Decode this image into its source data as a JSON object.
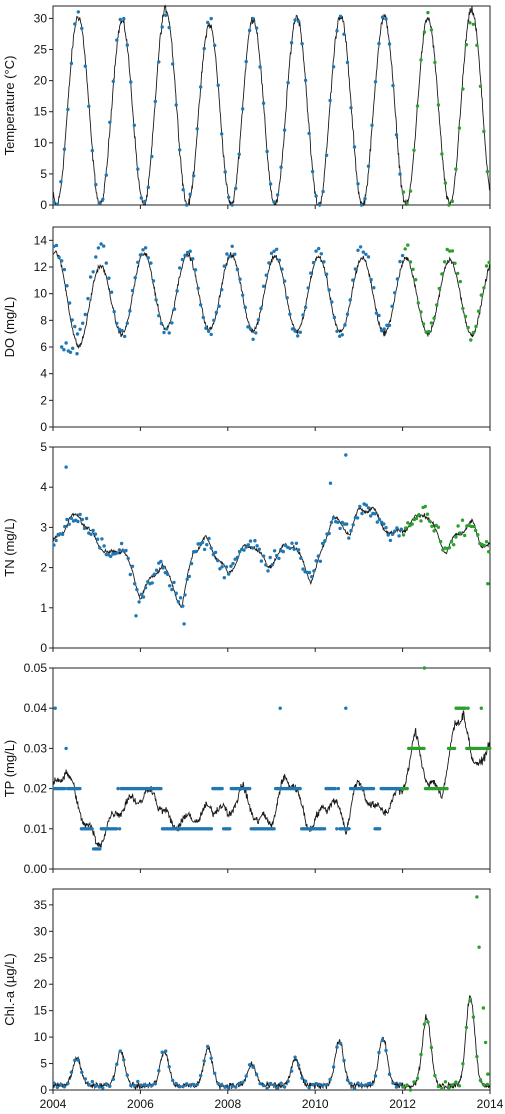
{
  "chart_data": {
    "type": "line",
    "x_axis": {
      "min": 2004,
      "max": 2014,
      "ticks": [
        "2004",
        "2006",
        "2008",
        "2010",
        "2012",
        "2014"
      ],
      "tick_values": [
        2004,
        2006,
        2008,
        2010,
        2012,
        2014
      ]
    },
    "colors": {
      "model_line": "#1a1a1a",
      "obs_blue": "#1f77b4",
      "obs_green": "#2ca02c"
    },
    "panels": [
      {
        "key": "temp",
        "ylabel": "Temperature (°C)",
        "ylim": [
          0,
          32
        ],
        "yticks": [
          0,
          5,
          10,
          15,
          20,
          25,
          30
        ],
        "line": {
          "model": "seasonal",
          "mean": 15,
          "amp": 15,
          "peak": 0.58,
          "sharp": 1.0,
          "noise": 1.0,
          "peaks": [
            30.3,
            29.5,
            31.5,
            29,
            30,
            30.3,
            30.5,
            30.2,
            30,
            31.3
          ]
        },
        "obs": {
          "model": "seasonal",
          "mean": 15,
          "amp": 15,
          "peak": 0.58,
          "scatter": 1.5,
          "step": 0.08
        },
        "green_after": 2012
      },
      {
        "key": "do",
        "ylabel": "DO (mg/L)",
        "ylim": [
          0,
          15
        ],
        "yticks": [
          0,
          2,
          4,
          6,
          8,
          10,
          12,
          14
        ],
        "line": {
          "model": "seasonal",
          "mean": 10,
          "amp": 2.8,
          "peak": 0.08,
          "noise": 0.3,
          "trend": [
            [
              2004,
              0.5
            ],
            [
              2004.6,
              -1.2
            ],
            [
              2006,
              0.2
            ],
            [
              2014,
              -0.3
            ]
          ]
        },
        "obs": {
          "model": "seasonal",
          "mean": 10.2,
          "amp": 3.2,
          "peak": 0.08,
          "scatter": 0.7,
          "step": 0.06
        },
        "extra_points": [
          [
            2004.2,
            6
          ],
          [
            2004.25,
            5.8
          ],
          [
            2004.3,
            6.3
          ],
          [
            2004.35,
            5.7
          ],
          [
            2004.4,
            5.6
          ],
          [
            2004.45,
            5.9
          ],
          [
            2004.55,
            5.5
          ]
        ],
        "green_after": 2012
      },
      {
        "key": "tn",
        "ylabel": "TN (mg/L)",
        "ylim": [
          0,
          5
        ],
        "yticks": [
          0,
          1,
          2,
          3,
          4,
          5
        ],
        "line": {
          "model": "piecewise",
          "noise": 0.06,
          "wiggle": 0.18,
          "points": [
            [
              2004,
              2.6
            ],
            [
              2004.4,
              3.2
            ],
            [
              2004.6,
              3.3
            ],
            [
              2004.9,
              2.8
            ],
            [
              2005.3,
              2.3
            ],
            [
              2005.6,
              2.5
            ],
            [
              2005.8,
              1.9
            ],
            [
              2006.0,
              1.3
            ],
            [
              2006.3,
              1.8
            ],
            [
              2006.5,
              2.1
            ],
            [
              2006.8,
              1.4
            ],
            [
              2006.95,
              1.0
            ],
            [
              2007.2,
              2.4
            ],
            [
              2007.5,
              2.7
            ],
            [
              2007.8,
              2.2
            ],
            [
              2008.0,
              1.8
            ],
            [
              2008.3,
              2.4
            ],
            [
              2008.6,
              2.6
            ],
            [
              2008.9,
              2.0
            ],
            [
              2009.3,
              2.5
            ],
            [
              2009.5,
              2.6
            ],
            [
              2009.9,
              1.7
            ],
            [
              2010.1,
              2.2
            ],
            [
              2010.4,
              3.3
            ],
            [
              2010.6,
              3.0
            ],
            [
              2010.8,
              2.9
            ],
            [
              2011.0,
              3.4
            ],
            [
              2011.3,
              3.5
            ],
            [
              2011.5,
              3.1
            ],
            [
              2011.8,
              2.8
            ],
            [
              2012.3,
              3.2
            ],
            [
              2012.5,
              3.4
            ],
            [
              2012.8,
              2.8
            ],
            [
              2013.0,
              2.4
            ],
            [
              2013.3,
              2.9
            ],
            [
              2013.6,
              3.1
            ],
            [
              2013.8,
              2.6
            ],
            [
              2014,
              2.5
            ]
          ]
        },
        "obs": {
          "model": "line",
          "scatter": 0.3,
          "step": 0.05
        },
        "extra_points": [
          [
            2004.3,
            4.5
          ],
          [
            2010.7,
            4.8
          ],
          [
            2010.35,
            4.1
          ],
          [
            2005.9,
            0.8
          ],
          [
            2007.0,
            0.6
          ],
          [
            2013.95,
            1.6
          ]
        ],
        "green_after": 2012
      },
      {
        "key": "tp",
        "ylabel": "TP (mg/L)",
        "ylim": [
          0,
          0.05
        ],
        "yticks": [
          0.0,
          0.01,
          0.02,
          0.03,
          0.04,
          0.05
        ],
        "ytick_labels": [
          "0.00",
          "0.01",
          "0.02",
          "0.03",
          "0.04",
          "0.05"
        ],
        "line": {
          "model": "piecewise",
          "noise": 0.0015,
          "wiggle": 0.003,
          "points": [
            [
              2004,
              0.02
            ],
            [
              2004.3,
              0.025
            ],
            [
              2004.6,
              0.015
            ],
            [
              2005.0,
              0.006
            ],
            [
              2005.5,
              0.015
            ],
            [
              2006.0,
              0.018
            ],
            [
              2006.3,
              0.019
            ],
            [
              2006.7,
              0.011
            ],
            [
              2007.3,
              0.013
            ],
            [
              2007.8,
              0.016
            ],
            [
              2008.0,
              0.013
            ],
            [
              2008.3,
              0.02
            ],
            [
              2008.7,
              0.012
            ],
            [
              2009.0,
              0.012
            ],
            [
              2009.3,
              0.022
            ],
            [
              2009.5,
              0.022
            ],
            [
              2009.8,
              0.011
            ],
            [
              2010.1,
              0.013
            ],
            [
              2010.4,
              0.018
            ],
            [
              2010.7,
              0.01
            ],
            [
              2010.9,
              0.02
            ],
            [
              2011.1,
              0.02
            ],
            [
              2011.4,
              0.014
            ],
            [
              2011.7,
              0.016
            ],
            [
              2012.0,
              0.02
            ],
            [
              2012.3,
              0.033
            ],
            [
              2012.6,
              0.021
            ],
            [
              2012.9,
              0.019
            ],
            [
              2013.2,
              0.035
            ],
            [
              2013.4,
              0.04
            ],
            [
              2013.6,
              0.025
            ],
            [
              2013.8,
              0.028
            ],
            [
              2014,
              0.03
            ]
          ]
        },
        "obs": {
          "model": "quantized",
          "levels": [
            0.005,
            0.01,
            0.02,
            0.03,
            0.04
          ],
          "step": 0.035
        },
        "extra_points": [
          [
            2004.05,
            0.04
          ],
          [
            2012.5,
            0.05
          ],
          [
            2009.2,
            0.04
          ],
          [
            2010.7,
            0.04
          ],
          [
            2013.5,
            0.04
          ],
          [
            2013.8,
            0.04
          ]
        ],
        "green_after": 2012
      },
      {
        "key": "chla",
        "ylabel": "Chl.-a (µg/L)",
        "ylim": [
          0,
          38
        ],
        "yticks": [
          0,
          5,
          10,
          15,
          20,
          25,
          30,
          35
        ],
        "line": {
          "model": "bloom",
          "noise": 0.9,
          "base": 0.8,
          "peaks": [
            5.3,
            6.6,
            6.6,
            7.0,
            4.0,
            5.0,
            8.5,
            9.0,
            13.0,
            17.0
          ],
          "center": 0.55,
          "width": 0.14
        },
        "obs": {
          "model": "line",
          "scatter": 1.0,
          "step": 0.08
        },
        "extra_points": [
          [
            2013.7,
            36.5
          ],
          [
            2013.75,
            27
          ],
          [
            2013.85,
            15.5
          ],
          [
            2013.9,
            9
          ],
          [
            2013.95,
            3
          ]
        ],
        "green_after": 2012
      }
    ]
  }
}
